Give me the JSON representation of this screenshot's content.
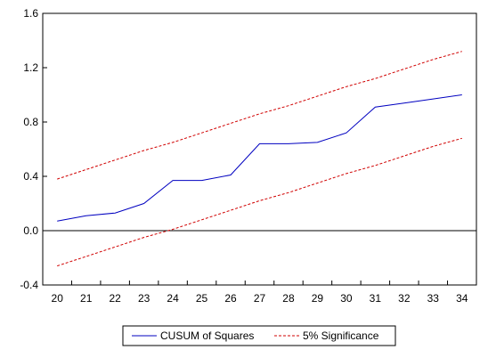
{
  "chart_data": {
    "type": "line",
    "title": "",
    "xlabel": "",
    "ylabel": "",
    "x": [
      20,
      21,
      22,
      23,
      24,
      25,
      26,
      27,
      28,
      29,
      30,
      31,
      32,
      33,
      34
    ],
    "xticks": [
      "20",
      "21",
      "22",
      "23",
      "24",
      "25",
      "26",
      "27",
      "28",
      "29",
      "30",
      "31",
      "32",
      "33",
      "34"
    ],
    "ylim": [
      -0.4,
      1.6
    ],
    "yticks": [
      "-0.4",
      "0.0",
      "0.4",
      "0.8",
      "1.2",
      "1.6"
    ],
    "ytick_values": [
      -0.4,
      0.0,
      0.4,
      0.8,
      1.2,
      1.6
    ],
    "zero_line": 0.0,
    "grid": false,
    "legend_position": "bottom-center",
    "series": [
      {
        "name": "CUSUM of Squares",
        "color": "#0000c0",
        "style": "solid",
        "values": [
          0.07,
          0.11,
          0.13,
          0.2,
          0.37,
          0.37,
          0.41,
          0.64,
          0.64,
          0.65,
          0.72,
          0.91,
          0.94,
          0.97,
          1.0
        ]
      },
      {
        "name": "5% Significance",
        "color": "#d00000",
        "style": "dashed",
        "values": [
          0.38,
          0.45,
          0.52,
          0.59,
          0.65,
          0.72,
          0.79,
          0.86,
          0.92,
          0.99,
          1.06,
          1.12,
          1.19,
          1.26,
          1.32
        ]
      },
      {
        "name": "",
        "color": "#d00000",
        "style": "dashed",
        "values": [
          -0.26,
          -0.19,
          -0.12,
          -0.05,
          0.01,
          0.08,
          0.15,
          0.22,
          0.28,
          0.35,
          0.42,
          0.48,
          0.55,
          0.62,
          0.68
        ]
      }
    ]
  }
}
